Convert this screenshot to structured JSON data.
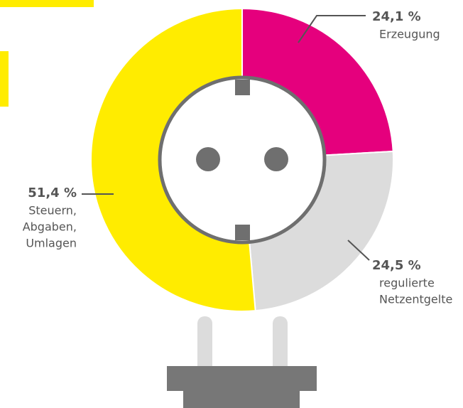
{
  "chart_data": {
    "type": "donut",
    "categories": [
      [
        "Erzeugung"
      ],
      [
        "regulierte",
        "Netzentgelte"
      ],
      [
        "Steuern,",
        "Abgaben,",
        "Umlagen"
      ]
    ],
    "values": [
      24.1,
      24.5,
      51.4
    ],
    "value_labels": [
      "24,1 %",
      "24,5 %",
      "51,4 %"
    ],
    "colors": [
      "#e5007d",
      "#dcdcdc",
      "#ffec00"
    ]
  }
}
